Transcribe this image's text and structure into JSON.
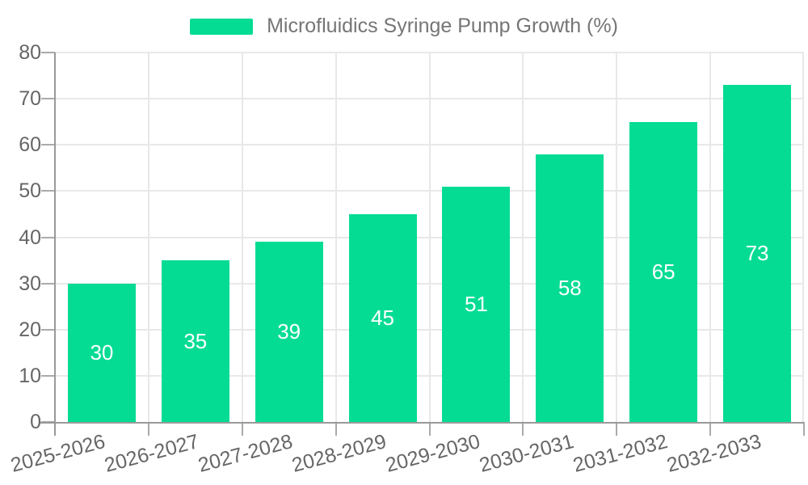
{
  "legend": {
    "label": "Microfluidics Syringe Pump Growth (%)"
  },
  "chart_data": {
    "type": "bar",
    "title": "Microfluidics Syringe Pump Growth (%)",
    "categories": [
      "2025-2026",
      "2026-2027",
      "2027-2028",
      "2028-2029",
      "2029-2030",
      "2030-2031",
      "2031-2032",
      "2032-2033"
    ],
    "values": [
      30,
      35,
      39,
      45,
      51,
      58,
      65,
      73
    ],
    "xlabel": "",
    "ylabel": "",
    "ylim": [
      0,
      80
    ],
    "yticks": [
      0,
      10,
      20,
      30,
      40,
      50,
      60,
      70,
      80
    ],
    "grid": true,
    "legend_position": "top-center",
    "x_label_rotation_deg": -15,
    "bar_label_position": "inside-center",
    "colors": {
      "bar": "#05DC93",
      "bar_label": "#FFFFFF",
      "axis_line": "#999999",
      "tick": "#AAAAAA",
      "grid_line": "#E8E8E8",
      "axis_label": "#666666",
      "legend_text": "#757575",
      "background": "#FFFFFF"
    }
  }
}
